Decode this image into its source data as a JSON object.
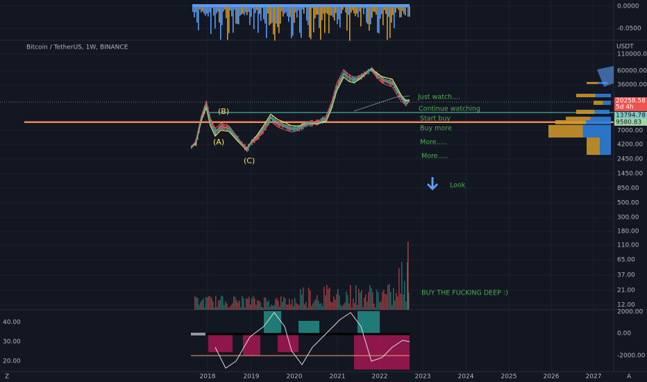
{
  "top_axis": [
    "0.0000",
    "-0.0500"
  ],
  "symbol": "Bitcoin / TetherUS, 1W, BINANCE",
  "currency": "USDT",
  "price_axis": [
    "110000.00",
    "60000.00",
    "36000.00",
    "7000.00",
    "4200.00",
    "2450.00",
    "1450.00",
    "850.00",
    "500.00",
    "300.00",
    "180.00",
    "110.00",
    "65.00",
    "37.00",
    "21.00",
    "12.00"
  ],
  "price_tags": [
    {
      "price": "20258.58",
      "countdown": "5d 4h"
    },
    {
      "price": "13794.78"
    },
    {
      "price": "9580.83"
    }
  ],
  "annotations": [
    "Just watch....",
    "Continue watching",
    "Start buy",
    "Buy more",
    "More.....",
    "More.....",
    "Look",
    "BUY THE FUCKING DEEP :)"
  ],
  "wave_labels": [
    "(B)",
    "(A)",
    "(C)"
  ],
  "oscillator_left_axis": [
    "40.00",
    "30.00",
    "20.00"
  ],
  "oscillator_right_axis": [
    "2000.00",
    "0.00",
    "-2000.00"
  ],
  "time_axis": [
    "2018",
    "2019",
    "2020",
    "2021",
    "2022",
    "2023",
    "2024",
    "2025",
    "2026",
    "2027"
  ],
  "corner_left": "Z",
  "corner_right": "A"
}
